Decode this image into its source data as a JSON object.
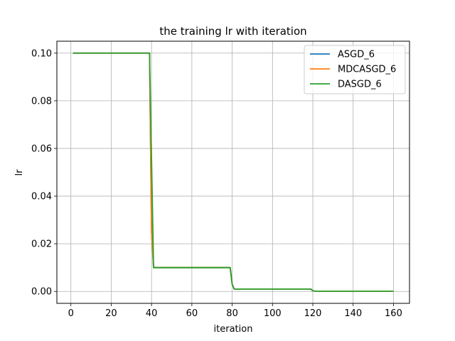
{
  "chart_data": {
    "type": "line",
    "title": "the training lr with iteration",
    "xlabel": "iteration",
    "ylabel": "lr",
    "xlim": [
      -6.95,
      167.95
    ],
    "ylim": [
      -0.005,
      0.105
    ],
    "xticks": [
      0,
      20,
      40,
      60,
      80,
      100,
      120,
      140,
      160
    ],
    "yticks": [
      0.0,
      0.02,
      0.04,
      0.06,
      0.08,
      0.1
    ],
    "ytick_labels": [
      "0.00",
      "0.02",
      "0.04",
      "0.06",
      "0.08",
      "0.10"
    ],
    "grid": true,
    "legend_position": "top-right",
    "series": [
      {
        "name": "ASGD_6",
        "color": "#1f77b4",
        "x": [
          1,
          39,
          40,
          41,
          79,
          80,
          81,
          119,
          120,
          121,
          160
        ],
        "y": [
          0.1,
          0.1,
          0.025,
          0.01,
          0.01,
          0.003,
          0.001,
          0.001,
          0.0003,
          0.0001,
          0.0001
        ]
      },
      {
        "name": "MDCASGD_6",
        "color": "#ff7f0e",
        "x": [
          1,
          39,
          40,
          41,
          79,
          80,
          81,
          119,
          120,
          121,
          160
        ],
        "y": [
          0.1,
          0.1,
          0.025,
          0.01,
          0.01,
          0.003,
          0.001,
          0.001,
          0.0003,
          0.0001,
          0.0001
        ]
      },
      {
        "name": "DASGD_6",
        "color": "#2ca02c",
        "x": [
          1,
          39,
          40,
          41,
          79,
          80,
          81,
          119,
          120,
          121,
          160
        ],
        "y": [
          0.1,
          0.1,
          0.055,
          0.01,
          0.01,
          0.003,
          0.001,
          0.001,
          0.0003,
          0.0001,
          0.0001
        ]
      }
    ]
  }
}
